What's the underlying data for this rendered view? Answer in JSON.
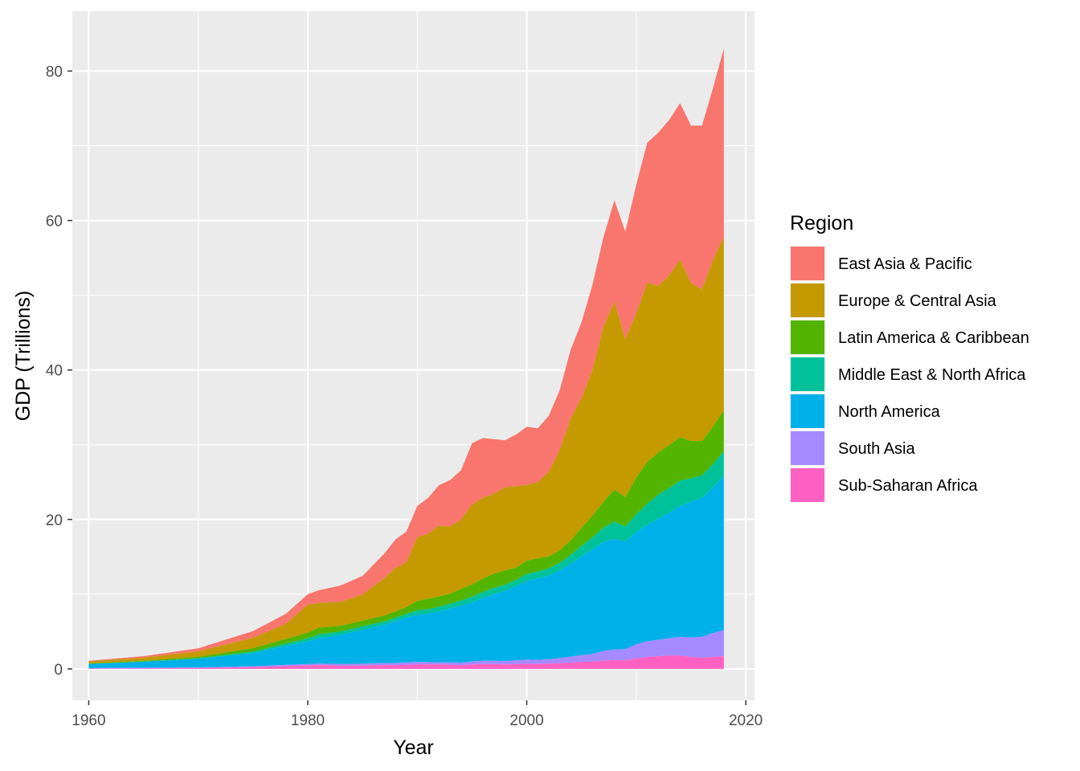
{
  "chart_data": {
    "type": "area",
    "stacked": true,
    "title": "",
    "xlabel": "Year",
    "ylabel": "GDP (Trillions)",
    "xlim": [
      1958.5,
      2020.8
    ],
    "ylim": [
      -4.2,
      88
    ],
    "xticks": [
      1960,
      1980,
      2000,
      2020
    ],
    "yticks": [
      0,
      20,
      40,
      60,
      80
    ],
    "xtick_labels": [
      "1960",
      "1980",
      "2000",
      "2020"
    ],
    "ytick_labels": [
      "0",
      "20",
      "40",
      "60",
      "80"
    ],
    "grid": true,
    "legend": {
      "title": "Region",
      "position": "right"
    },
    "x": [
      1960,
      1965,
      1970,
      1975,
      1978,
      1980,
      1981,
      1983,
      1985,
      1987,
      1988,
      1989,
      1990,
      1991,
      1992,
      1993,
      1994,
      1995,
      1996,
      1997,
      1998,
      1999,
      2000,
      2001,
      2002,
      2003,
      2004,
      2005,
      2006,
      2007,
      2008,
      2009,
      2010,
      2011,
      2012,
      2013,
      2014,
      2015,
      2016,
      2017,
      2018
    ],
    "series": [
      {
        "name": "Sub-Saharan Africa",
        "color": "#FF61C3",
        "values": [
          0.05,
          0.08,
          0.12,
          0.25,
          0.38,
          0.45,
          0.52,
          0.45,
          0.45,
          0.5,
          0.5,
          0.55,
          0.6,
          0.6,
          0.6,
          0.55,
          0.5,
          0.6,
          0.65,
          0.65,
          0.6,
          0.65,
          0.7,
          0.65,
          0.7,
          0.75,
          0.85,
          0.95,
          1.0,
          1.1,
          1.2,
          1.15,
          1.4,
          1.6,
          1.7,
          1.8,
          1.8,
          1.6,
          1.5,
          1.6,
          1.7
        ]
      },
      {
        "name": "South Asia",
        "color": "#A58AFF",
        "values": [
          0.05,
          0.07,
          0.08,
          0.12,
          0.16,
          0.2,
          0.2,
          0.22,
          0.25,
          0.3,
          0.3,
          0.32,
          0.35,
          0.3,
          0.3,
          0.32,
          0.35,
          0.4,
          0.45,
          0.45,
          0.45,
          0.5,
          0.55,
          0.55,
          0.6,
          0.7,
          0.8,
          0.9,
          1.0,
          1.3,
          1.4,
          1.5,
          1.9,
          2.1,
          2.2,
          2.3,
          2.5,
          2.6,
          2.8,
          3.2,
          3.5
        ]
      },
      {
        "name": "North America",
        "color": "#00B0E8",
        "values": [
          0.55,
          0.8,
          1.15,
          1.75,
          2.55,
          3.0,
          3.4,
          3.9,
          4.55,
          5.1,
          5.6,
          6.0,
          6.3,
          6.5,
          6.8,
          7.2,
          7.6,
          7.9,
          8.4,
          8.9,
          9.4,
          9.9,
          10.5,
          10.9,
          11.2,
          11.7,
          12.4,
          13.2,
          14.0,
          14.6,
          14.8,
          14.4,
          15.0,
          15.6,
          16.2,
          16.8,
          17.5,
          18.2,
          18.6,
          19.5,
          20.6
        ]
      },
      {
        "name": "Middle East & North Africa",
        "color": "#00C19A",
        "values": [
          0.02,
          0.05,
          0.08,
          0.2,
          0.3,
          0.45,
          0.5,
          0.45,
          0.45,
          0.45,
          0.45,
          0.5,
          0.6,
          0.6,
          0.65,
          0.65,
          0.7,
          0.75,
          0.8,
          0.85,
          0.8,
          0.85,
          0.95,
          0.95,
          0.95,
          1.05,
          1.2,
          1.4,
          1.6,
          1.9,
          2.3,
          2.0,
          2.4,
          2.8,
          3.2,
          3.3,
          3.4,
          3.1,
          3.0,
          3.1,
          3.3
        ]
      },
      {
        "name": "Latin America & Caribbean",
        "color": "#53B400",
        "values": [
          0.08,
          0.11,
          0.18,
          0.45,
          0.63,
          0.75,
          0.9,
          0.75,
          0.75,
          0.8,
          0.85,
          0.9,
          1.25,
          1.4,
          1.35,
          1.35,
          1.55,
          1.65,
          1.8,
          1.9,
          1.95,
          1.65,
          1.8,
          1.75,
          1.6,
          1.65,
          1.95,
          2.45,
          2.9,
          3.45,
          4.3,
          3.95,
          4.9,
          5.6,
          5.65,
          5.75,
          5.8,
          5.0,
          4.6,
          5.0,
          5.5
        ]
      },
      {
        "name": "Europe & Central Asia",
        "color": "#C49A00",
        "values": [
          0.25,
          0.4,
          0.75,
          1.4,
          2.0,
          3.75,
          3.3,
          3.2,
          3.5,
          5.0,
          5.8,
          6.0,
          8.5,
          8.7,
          9.5,
          9.0,
          9.3,
          10.7,
          10.8,
          10.7,
          11.1,
          10.9,
          10.1,
          10.2,
          11.3,
          13.4,
          16.3,
          17.3,
          19.5,
          23.4,
          25.1,
          21.1,
          22.0,
          24.0,
          22.3,
          22.7,
          23.8,
          21.1,
          20.3,
          22.3,
          23.2
        ]
      },
      {
        "name": "East Asia & Pacific",
        "color": "#F8766D",
        "values": [
          0.1,
          0.2,
          0.4,
          0.9,
          1.35,
          1.4,
          1.7,
          2.2,
          2.5,
          3.3,
          3.8,
          4.1,
          4.2,
          4.8,
          5.4,
          6.2,
          6.6,
          8.2,
          8.0,
          7.3,
          6.3,
          6.9,
          7.8,
          7.2,
          7.5,
          8.0,
          9.2,
          10.2,
          11.4,
          12.0,
          13.6,
          14.4,
          17.2,
          18.7,
          20.5,
          20.8,
          20.9,
          21.1,
          21.9,
          23.0,
          25.2
        ]
      }
    ]
  }
}
